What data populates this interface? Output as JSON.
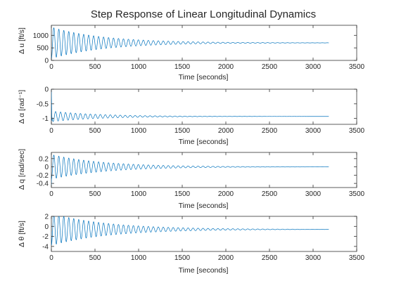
{
  "chart_data": {
    "type": "line",
    "title": "Step Response of Linear Longitudinal Dynamics",
    "line_color": "#0072BD",
    "grid": false,
    "subplots": [
      {
        "xlabel": "Time [seconds]",
        "ylabel": "Δ u [ft/s]",
        "xlim": [
          0,
          3500
        ],
        "ylim": [
          0,
          1400
        ],
        "xticks": [
          0,
          500,
          1000,
          1500,
          2000,
          2500,
          3000,
          3500
        ],
        "yticks": [
          0,
          500,
          1000
        ],
        "ytick_labels": [
          "0",
          "500",
          "1000"
        ],
        "series": [
          {
            "t_end": 3180,
            "initial": 0,
            "final": 700,
            "first_peak": 1330,
            "first_trough": 80,
            "period": 57,
            "decay_time": 600
          }
        ]
      },
      {
        "xlabel": "Time [seconds]",
        "ylabel": "Δ α [rad⁻¹]",
        "xlim": [
          0,
          3500
        ],
        "ylim": [
          -1.2,
          0
        ],
        "xticks": [
          0,
          500,
          1000,
          1500,
          2000,
          2500,
          3000,
          3500
        ],
        "yticks": [
          -1,
          -0.5,
          0
        ],
        "ytick_labels": [
          "-1",
          "-0.5",
          "0"
        ],
        "series": [
          {
            "t_end": 3180,
            "initial": 0,
            "final": -0.93,
            "first_peak": -0.75,
            "first_trough": -1.08,
            "period": 57,
            "decay_time": 550,
            "initial_drop": true
          }
        ]
      },
      {
        "xlabel": "Time [seconds]",
        "ylabel": "Δ q [rad/sec]",
        "xlim": [
          0,
          3500
        ],
        "ylim": [
          -0.5,
          0.35
        ],
        "xticks": [
          0,
          500,
          1000,
          1500,
          2000,
          2500,
          3000,
          3500
        ],
        "yticks": [
          -0.4,
          -0.2,
          0,
          0.2
        ],
        "ytick_labels": [
          "-0.4",
          "-0.2",
          "0",
          "0.2"
        ],
        "series": [
          {
            "t_end": 3180,
            "initial": -0.45,
            "final": 0,
            "first_peak": 0.3,
            "first_trough": -0.3,
            "period": 57,
            "decay_time": 600
          }
        ]
      },
      {
        "xlabel": "Time [seconds]",
        "ylabel": "Δ θ [ft/s]",
        "xlim": [
          0,
          3500
        ],
        "ylim": [
          -5,
          2
        ],
        "xticks": [
          0,
          500,
          1000,
          1500,
          2000,
          2500,
          3000,
          3500
        ],
        "yticks": [
          -4,
          -2,
          0,
          2
        ],
        "ytick_labels": [
          "-4",
          "-2",
          "0",
          "2"
        ],
        "series": [
          {
            "t_end": 3180,
            "initial": -1,
            "final": -0.6,
            "first_peak": 1.8,
            "first_trough": -3.8,
            "period": 57,
            "decay_time": 650
          }
        ]
      }
    ]
  }
}
